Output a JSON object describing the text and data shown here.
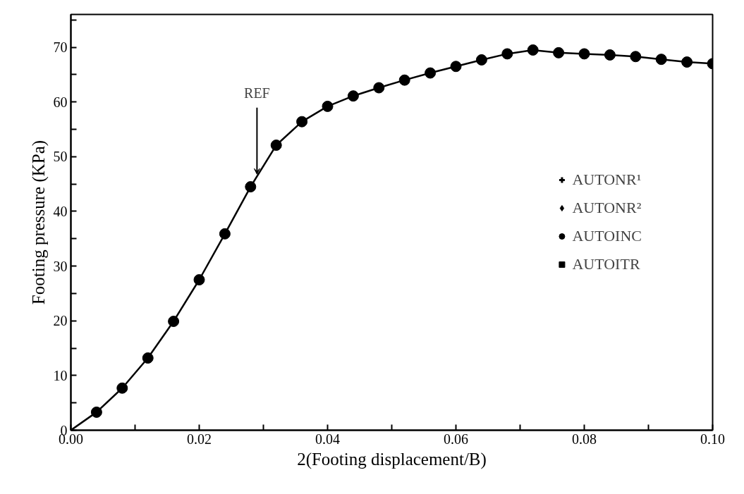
{
  "chart_data": {
    "type": "scatter",
    "xlabel": "2(Footing displacement/B)",
    "ylabel": "Footing pressure (KPa)",
    "x": [
      0.004,
      0.008,
      0.012,
      0.016,
      0.02,
      0.024,
      0.028,
      0.032,
      0.036,
      0.04,
      0.044,
      0.048,
      0.052,
      0.056,
      0.06,
      0.064,
      0.068,
      0.072,
      0.076,
      0.08,
      0.084,
      0.088,
      0.092,
      0.096,
      0.1
    ],
    "series": [
      {
        "name": "AUTONR¹",
        "color": "#000000",
        "marker": "cross",
        "values": [
          null,
          null,
          null,
          null,
          null,
          null,
          null,
          null,
          null,
          null,
          null,
          null,
          null,
          null,
          null,
          null,
          null,
          null,
          null,
          null,
          null,
          null,
          null,
          null,
          null
        ]
      },
      {
        "name": "AUTONR²",
        "color": "#000000",
        "marker": "diamond",
        "values": [
          null,
          null,
          null,
          null,
          null,
          null,
          null,
          null,
          null,
          null,
          null,
          null,
          null,
          null,
          null,
          null,
          null,
          null,
          null,
          null,
          null,
          null,
          null,
          null,
          null
        ]
      },
      {
        "name": "AUTOINC",
        "color": "#000000",
        "marker": "circle",
        "values": [
          3.3,
          7.7,
          13.2,
          19.9,
          27.5,
          35.9,
          44.5,
          52.1,
          56.4,
          59.2,
          61.1,
          62.6,
          64.0,
          65.3,
          66.5,
          67.7,
          68.8,
          69.5,
          69.0,
          68.8,
          68.6,
          68.3,
          67.8,
          67.3,
          67.0
        ]
      },
      {
        "name": "AUTOITR",
        "color": "#000000",
        "marker": "square",
        "values": [
          null,
          null,
          null,
          null,
          null,
          null,
          null,
          null,
          null,
          null,
          null,
          null,
          null,
          null,
          null,
          null,
          null,
          null,
          null,
          null,
          null,
          null,
          null,
          null,
          null
        ]
      },
      {
        "type": "line",
        "color": "#000000",
        "line_style": "solid",
        "marker": "none",
        "x": [
          0,
          0.004,
          0.008,
          0.012,
          0.016,
          0.02,
          0.024,
          0.028,
          0.032,
          0.036,
          0.04,
          0.044,
          0.048,
          0.052,
          0.056,
          0.06,
          0.064,
          0.068,
          0.072,
          0.076,
          0.08,
          0.084,
          0.088,
          0.092,
          0.096,
          0.1
        ],
        "values": [
          0,
          3.3,
          7.7,
          13.2,
          19.9,
          27.5,
          35.9,
          44.5,
          52.1,
          56.4,
          59.2,
          61.1,
          62.6,
          64.0,
          65.3,
          66.5,
          67.7,
          68.8,
          69.5,
          69.0,
          68.8,
          68.6,
          68.3,
          67.8,
          67.3,
          67.0
        ]
      }
    ],
    "annotations": [
      {
        "text": "REF",
        "x": 0.029,
        "y": 46.8
      }
    ],
    "xlim": [
      0,
      0.1
    ],
    "ylim": [
      0,
      76
    ],
    "xticks": [
      {
        "value": 0,
        "label": "0.00"
      },
      {
        "value": 0.01,
        "label": null
      },
      {
        "value": 0.02,
        "label": "0.02"
      },
      {
        "value": 0.03,
        "label": null
      },
      {
        "value": 0.04,
        "label": "0.04"
      },
      {
        "value": 0.05,
        "label": null
      },
      {
        "value": 0.06,
        "label": "0.06"
      },
      {
        "value": 0.07,
        "label": null
      },
      {
        "value": 0.08,
        "label": "0.08"
      },
      {
        "value": 0.09,
        "label": null
      },
      {
        "value": 0.1,
        "label": "0.10"
      }
    ],
    "yticks": [
      0,
      {
        "value": 5,
        "label": null
      },
      10,
      {
        "value": 15,
        "label": null
      },
      20,
      {
        "value": 25,
        "label": null
      },
      30,
      {
        "value": 35,
        "label": null
      },
      40,
      {
        "value": 45,
        "label": null
      },
      50,
      {
        "value": 55,
        "label": null
      },
      60,
      {
        "value": 65,
        "label": null
      },
      70,
      {
        "value": 75,
        "label": null
      }
    ],
    "grid": false,
    "legend": "right"
  }
}
